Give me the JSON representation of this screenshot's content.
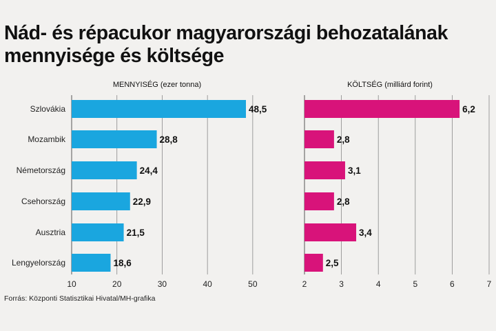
{
  "title": "Nád- és répacukor magyarországi behozatalának mennyisége és költsége",
  "source": "Forrás: Központi Statisztikai Hivatal/MH-grafika",
  "chart_data": [
    {
      "type": "bar",
      "orientation": "horizontal",
      "title": "MENNYISÉG (ezer tonna)",
      "categories": [
        "Szlovákia",
        "Mozambik",
        "Németország",
        "Csehország",
        "Ausztria",
        "Lengyelország"
      ],
      "values": [
        48.5,
        28.8,
        24.4,
        22.9,
        21.5,
        18.6
      ],
      "value_labels": [
        "48,5",
        "28,8",
        "24,4",
        "22,9",
        "21,5",
        "18,6"
      ],
      "xlim": [
        10,
        52
      ],
      "ticks": [
        10,
        20,
        30,
        40,
        50
      ],
      "tick_labels": [
        "10",
        "20",
        "30",
        "40",
        "50"
      ],
      "grid": true,
      "color": "#1aa6df"
    },
    {
      "type": "bar",
      "orientation": "horizontal",
      "title": "KÖLTSÉG (milliárd forint)",
      "categories": [
        "Szlovákia",
        "Mozambik",
        "Németország",
        "Csehország",
        "Ausztria",
        "Lengyelország"
      ],
      "values": [
        6.2,
        2.8,
        3.1,
        2.8,
        3.4,
        2.5
      ],
      "value_labels": [
        "6,2",
        "2,8",
        "3,1",
        "2,8",
        "3,4",
        "2,5"
      ],
      "xlim": [
        2,
        7
      ],
      "ticks": [
        2,
        3,
        4,
        5,
        6,
        7
      ],
      "tick_labels": [
        "2",
        "3",
        "4",
        "5",
        "6",
        "7"
      ],
      "grid": true,
      "color": "#d8137a"
    }
  ]
}
